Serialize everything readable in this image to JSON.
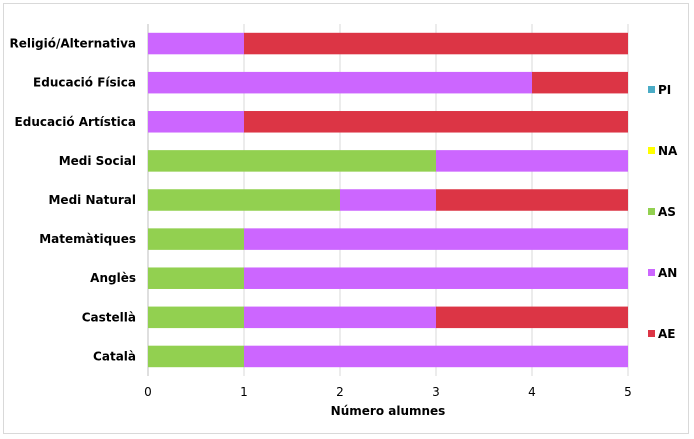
{
  "chart_data": {
    "type": "bar",
    "orientation": "horizontal",
    "stacked": true,
    "categories": [
      "Català",
      "Castellà",
      "Anglès",
      "Matemàtiques",
      "Medi Natural",
      "Medi Social",
      "Educació Artística",
      "Educació Física",
      "Religió/Alternativa"
    ],
    "series": [
      {
        "name": "PI",
        "color": "#4bacc6",
        "values": [
          0,
          0,
          0,
          0,
          0,
          0,
          0,
          0,
          0
        ]
      },
      {
        "name": "NA",
        "color": "#ffff00",
        "values": [
          0,
          0,
          0,
          0,
          0,
          0,
          0,
          0,
          0
        ]
      },
      {
        "name": "AS",
        "color": "#92d050",
        "values": [
          1,
          1,
          1,
          1,
          2,
          3,
          0,
          0,
          0
        ]
      },
      {
        "name": "AN",
        "color": "#cc66ff",
        "values": [
          4,
          2,
          4,
          4,
          1,
          2,
          1,
          4,
          1
        ]
      },
      {
        "name": "AE",
        "color": "#dc3545",
        "values": [
          0,
          2,
          0,
          0,
          2,
          0,
          4,
          1,
          4
        ]
      }
    ],
    "xlim": [
      0,
      5
    ],
    "xticks": [
      "0",
      "1",
      "2",
      "3",
      "4",
      "5"
    ],
    "xlabel": "Número alumnes",
    "ylabel": "",
    "title": "",
    "grid": "vertical",
    "gridColor": "#d9d9d9",
    "legend_position": "right"
  }
}
